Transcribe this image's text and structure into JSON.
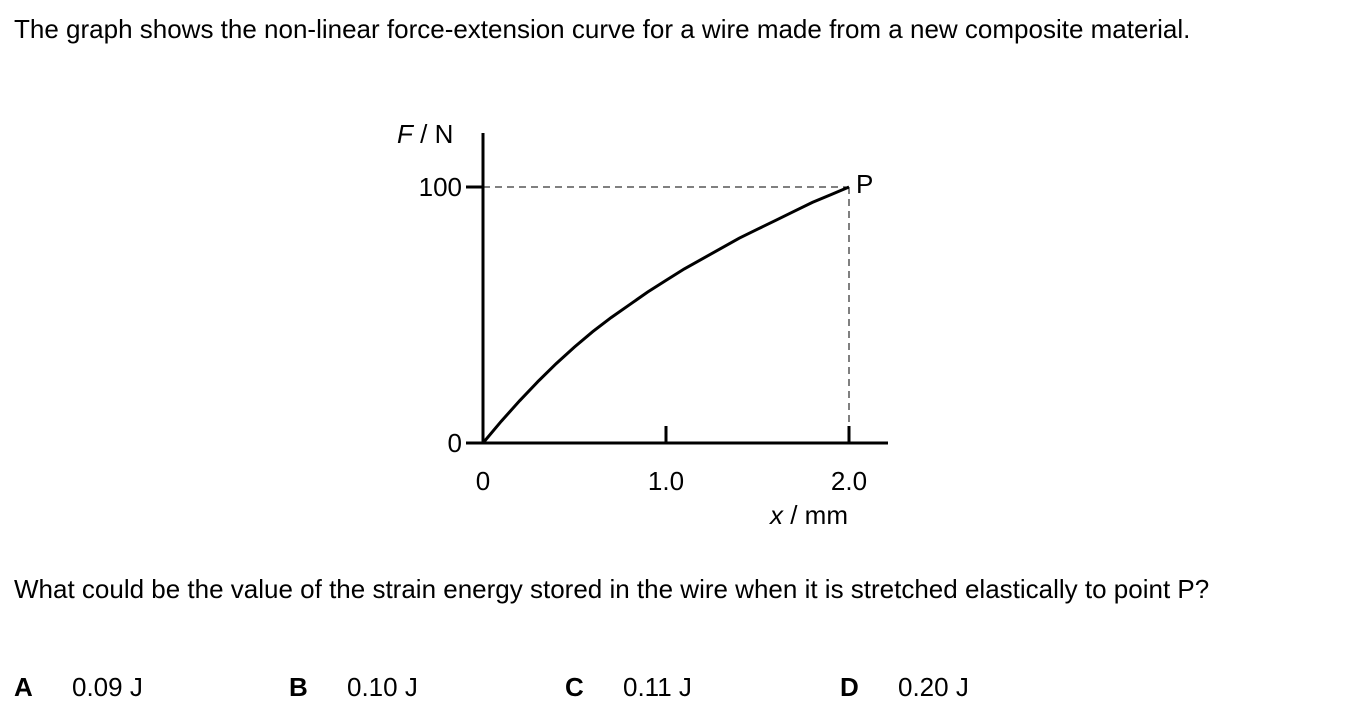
{
  "question": {
    "intro": "The graph shows the non-linear force-extension curve for a wire made from a new composite material.",
    "prompt": "What could be the value of the strain energy stored in the wire when it is stretched elastically to point P?",
    "options": [
      {
        "letter": "A",
        "value": "0.09 J"
      },
      {
        "letter": "B",
        "value": "0.10 J"
      },
      {
        "letter": "C",
        "value": "0.11 J"
      },
      {
        "letter": "D",
        "value": "0.20 J"
      }
    ]
  },
  "chart_data": {
    "type": "line",
    "title": "",
    "ylabel_symbol": "F",
    "ylabel_unit": "N",
    "xlabel_symbol": "x",
    "xlabel_unit": "mm",
    "xlim": [
      0,
      2.0
    ],
    "ylim": [
      0,
      100
    ],
    "x_ticks": [
      "0",
      "1.0",
      "2.0"
    ],
    "x_tick_values": [
      0,
      1.0,
      2.0
    ],
    "y_ticks": [
      "0",
      "100"
    ],
    "y_tick_values": [
      0,
      100
    ],
    "grid": false,
    "point_label": "P",
    "point": {
      "x": 2.0,
      "y": 100
    },
    "series": [
      {
        "x": [
          0,
          0.1,
          0.2,
          0.3,
          0.4,
          0.5,
          0.6,
          0.7,
          0.8,
          0.9,
          1.0,
          1.1,
          1.2,
          1.3,
          1.4,
          1.5,
          1.6,
          1.7,
          1.8,
          1.9,
          2.0
        ],
        "y": [
          0,
          8.5,
          16.5,
          24,
          31,
          37.5,
          43.5,
          49,
          54,
          59,
          63.5,
          68,
          72,
          76,
          80,
          83.5,
          87,
          90.5,
          94,
          97,
          100
        ]
      }
    ]
  }
}
